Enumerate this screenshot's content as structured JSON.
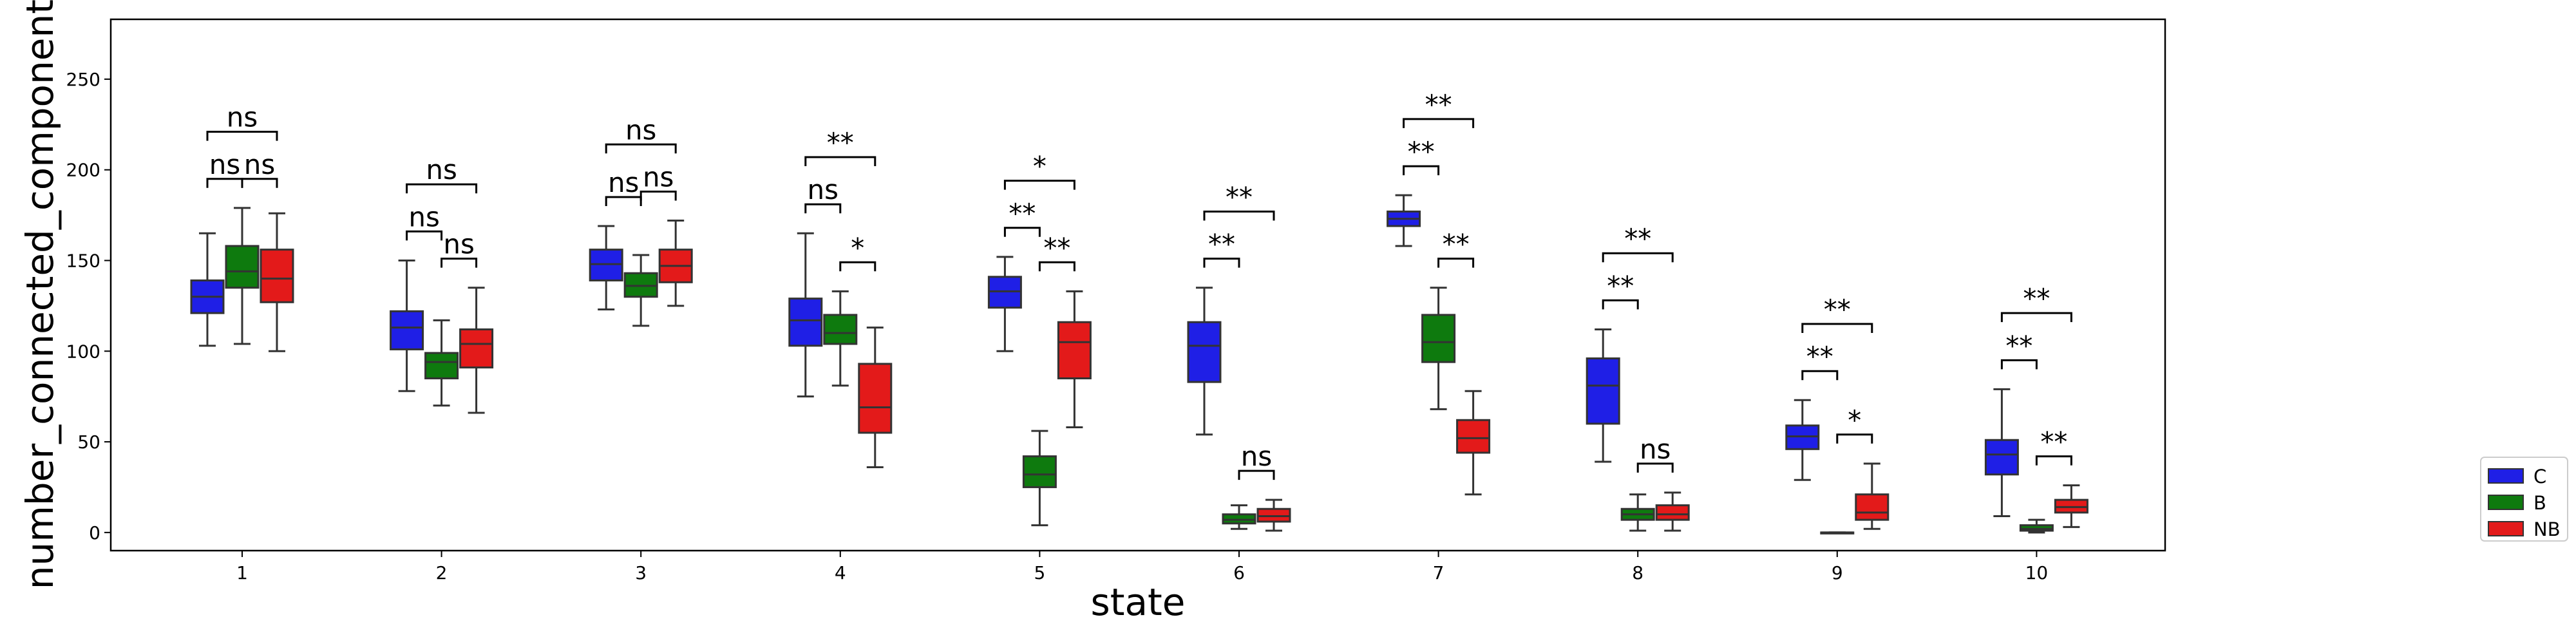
{
  "chart_data": {
    "type": "box",
    "xlabel": "state",
    "ylabel": "number_connected_components",
    "categories": [
      "1",
      "2",
      "3",
      "4",
      "5",
      "6",
      "7",
      "8",
      "9",
      "10"
    ],
    "ylim": [
      -10,
      283
    ],
    "yticks": [
      0,
      50,
      100,
      150,
      200,
      250
    ],
    "grid": false,
    "legend_position": "right-bottom",
    "series": [
      {
        "name": "C",
        "color": "#1f1fe6",
        "boxes": [
          {
            "whislo": 103,
            "q1": 121,
            "med": 130,
            "q3": 139,
            "whishi": 165
          },
          {
            "whislo": 78,
            "q1": 101,
            "med": 113,
            "q3": 122,
            "whishi": 150
          },
          {
            "whislo": 123,
            "q1": 139,
            "med": 148,
            "q3": 156,
            "whishi": 169
          },
          {
            "whislo": 75,
            "q1": 103,
            "med": 117,
            "q3": 129,
            "whishi": 165
          },
          {
            "whislo": 100,
            "q1": 124,
            "med": 133,
            "q3": 141,
            "whishi": 152
          },
          {
            "whislo": 54,
            "q1": 83,
            "med": 103,
            "q3": 116,
            "whishi": 135
          },
          {
            "whislo": 158,
            "q1": 169,
            "med": 173,
            "q3": 177,
            "whishi": 186
          },
          {
            "whislo": 39,
            "q1": 60,
            "med": 81,
            "q3": 96,
            "whishi": 112
          },
          {
            "whislo": 29,
            "q1": 46,
            "med": 53,
            "q3": 59,
            "whishi": 73
          },
          {
            "whislo": 9,
            "q1": 32,
            "med": 43,
            "q3": 51,
            "whishi": 79
          }
        ]
      },
      {
        "name": "B",
        "color": "#0e7a0e",
        "boxes": [
          {
            "whislo": 104,
            "q1": 135,
            "med": 144,
            "q3": 158,
            "whishi": 179
          },
          {
            "whislo": 70,
            "q1": 85,
            "med": 94,
            "q3": 99,
            "whishi": 117
          },
          {
            "whislo": 114,
            "q1": 130,
            "med": 136,
            "q3": 143,
            "whishi": 153
          },
          {
            "whislo": 81,
            "q1": 104,
            "med": 110,
            "q3": 120,
            "whishi": 133
          },
          {
            "whislo": 4,
            "q1": 25,
            "med": 32,
            "q3": 42,
            "whishi": 56
          },
          {
            "whislo": 2,
            "q1": 5,
            "med": 7,
            "q3": 10,
            "whishi": 15
          },
          {
            "whislo": 68,
            "q1": 94,
            "med": 105,
            "q3": 120,
            "whishi": 135
          },
          {
            "whislo": 1,
            "q1": 7,
            "med": 10,
            "q3": 13,
            "whishi": 21
          },
          {
            "whislo": 0,
            "q1": 0,
            "med": 0,
            "q3": 0,
            "whishi": 0
          },
          {
            "whislo": 0,
            "q1": 1,
            "med": 2,
            "q3": 4,
            "whishi": 7
          }
        ]
      },
      {
        "name": "NB",
        "color": "#e31a1a",
        "boxes": [
          {
            "whislo": 100,
            "q1": 127,
            "med": 140,
            "q3": 156,
            "whishi": 176
          },
          {
            "whislo": 66,
            "q1": 91,
            "med": 104,
            "q3": 112,
            "whishi": 135
          },
          {
            "whislo": 125,
            "q1": 138,
            "med": 147,
            "q3": 156,
            "whishi": 172
          },
          {
            "whislo": 36,
            "q1": 55,
            "med": 69,
            "q3": 93,
            "whishi": 113
          },
          {
            "whislo": 58,
            "q1": 85,
            "med": 105,
            "q3": 116,
            "whishi": 133
          },
          {
            "whislo": 1,
            "q1": 6,
            "med": 9,
            "q3": 13,
            "whishi": 18
          },
          {
            "whislo": 21,
            "q1": 44,
            "med": 52,
            "q3": 62,
            "whishi": 78
          },
          {
            "whislo": 1,
            "q1": 7,
            "med": 10,
            "q3": 15,
            "whishi": 22
          },
          {
            "whislo": 2,
            "q1": 7,
            "med": 11,
            "q3": 21,
            "whishi": 38
          },
          {
            "whislo": 3,
            "q1": 11,
            "med": 14,
            "q3": 18,
            "whishi": 26
          }
        ]
      }
    ],
    "significance": [
      {
        "state": "1",
        "C_B": "ns",
        "B_NB": "ns",
        "C_NB": "ns"
      },
      {
        "state": "2",
        "C_B": "ns",
        "B_NB": "ns",
        "C_NB": "ns"
      },
      {
        "state": "3",
        "C_B": "ns",
        "B_NB": "ns",
        "C_NB": "ns"
      },
      {
        "state": "4",
        "C_B": "ns",
        "B_NB": "*",
        "C_NB": "**"
      },
      {
        "state": "5",
        "C_B": "**",
        "B_NB": "**",
        "C_NB": "*"
      },
      {
        "state": "6",
        "C_B": "**",
        "B_NB": "ns",
        "C_NB": "**"
      },
      {
        "state": "7",
        "C_B": "**",
        "B_NB": "**",
        "C_NB": "**"
      },
      {
        "state": "8",
        "C_B": "**",
        "B_NB": "ns",
        "C_NB": "**"
      },
      {
        "state": "9",
        "C_B": "**",
        "B_NB": "*",
        "C_NB": "**"
      },
      {
        "state": "10",
        "C_B": "**",
        "B_NB": "**",
        "C_NB": "**"
      }
    ]
  }
}
